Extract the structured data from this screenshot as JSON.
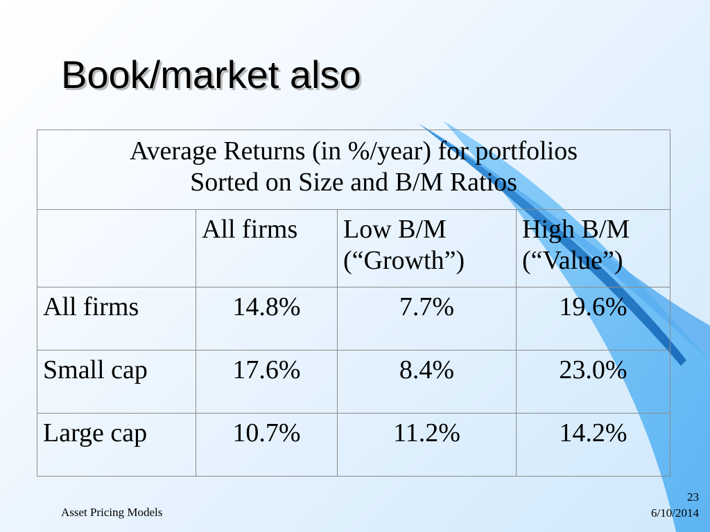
{
  "slide": {
    "title": "Book/market also",
    "footer_left": "Asset Pricing Models",
    "page_number": "23",
    "date": "6/10/2014"
  },
  "table": {
    "caption_line1": "Average Returns (in %/year) for portfolios",
    "caption_line2": "Sorted on Size and B/M Ratios",
    "columns": [
      {
        "line1": "",
        "line2": ""
      },
      {
        "line1": "All firms",
        "line2": ""
      },
      {
        "line1": "Low B/M",
        "line2": "(“Growth”)"
      },
      {
        "line1": "High B/M",
        "line2": "(“Value”)"
      }
    ],
    "rows": [
      {
        "label": "All firms",
        "values": [
          "14.8%",
          "7.7%",
          "19.6%"
        ]
      },
      {
        "label": "Small cap",
        "values": [
          "17.6%",
          "8.4%",
          "23.0%"
        ]
      },
      {
        "label": "Large cap",
        "values": [
          "10.7%",
          "11.2%",
          "14.2%"
        ]
      }
    ]
  },
  "colors": {
    "swoosh_dark": "#1f78c8",
    "swoosh_mid": "#4aa8ee",
    "swoosh_light": "#7fc6f7"
  }
}
